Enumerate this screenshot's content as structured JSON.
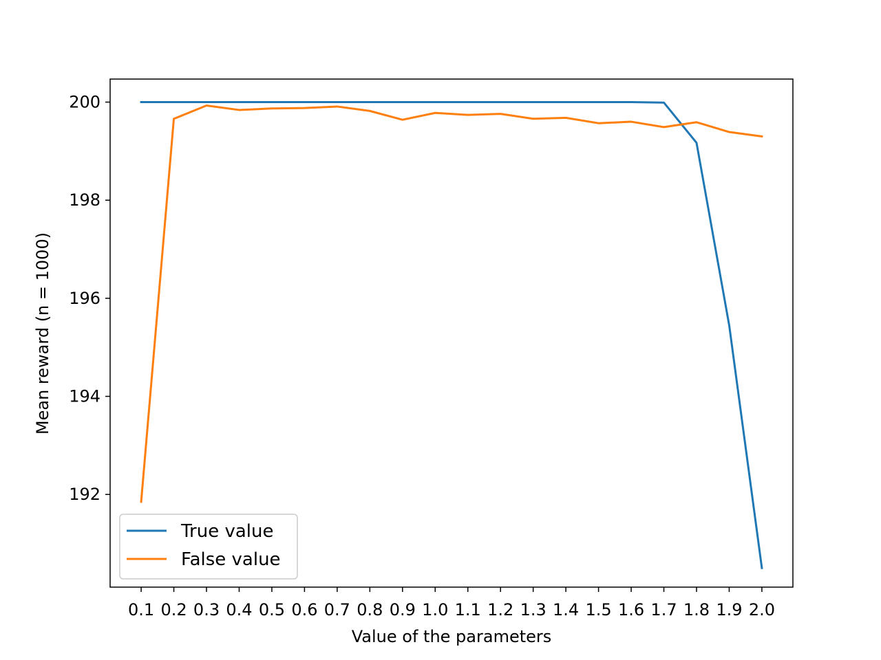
{
  "chart_data": {
    "type": "line",
    "x": [
      0.1,
      0.2,
      0.3,
      0.4,
      0.5,
      0.6,
      0.7,
      0.8,
      0.9,
      1.0,
      1.1,
      1.2,
      1.3,
      1.4,
      1.5,
      1.6,
      1.7,
      1.8,
      1.9,
      2.0
    ],
    "x_tick_labels": [
      "0.1",
      "0.2",
      "0.3",
      "0.4",
      "0.5",
      "0.6",
      "0.7",
      "0.8",
      "0.9",
      "1.0",
      "1.1",
      "1.2",
      "1.3",
      "1.4",
      "1.5",
      "1.6",
      "1.7",
      "1.8",
      "1.9",
      "2.0"
    ],
    "y_ticks": [
      192,
      194,
      196,
      198,
      200
    ],
    "y_tick_labels": [
      "192",
      "194",
      "196",
      "198",
      "200"
    ],
    "xlabel": "Value of the parameters",
    "ylabel": "Mean reward (n = 1000)",
    "xlim": [
      0.005,
      2.095
    ],
    "ylim": [
      190.11,
      200.47
    ],
    "grid": false,
    "legend_position": "lower-left",
    "series": [
      {
        "name": "True value",
        "color": "#1f77b4",
        "values": [
          200,
          200,
          200,
          200,
          200,
          200,
          200,
          200,
          200,
          200,
          200,
          200,
          200,
          200,
          200,
          200,
          199.99,
          199.17,
          195.45,
          190.5
        ]
      },
      {
        "name": "False value",
        "color": "#ff7f0e",
        "values": [
          191.85,
          199.66,
          199.93,
          199.84,
          199.87,
          199.88,
          199.91,
          199.82,
          199.64,
          199.78,
          199.74,
          199.76,
          199.66,
          199.68,
          199.57,
          199.6,
          199.49,
          199.59,
          199.39,
          199.3
        ]
      }
    ]
  }
}
